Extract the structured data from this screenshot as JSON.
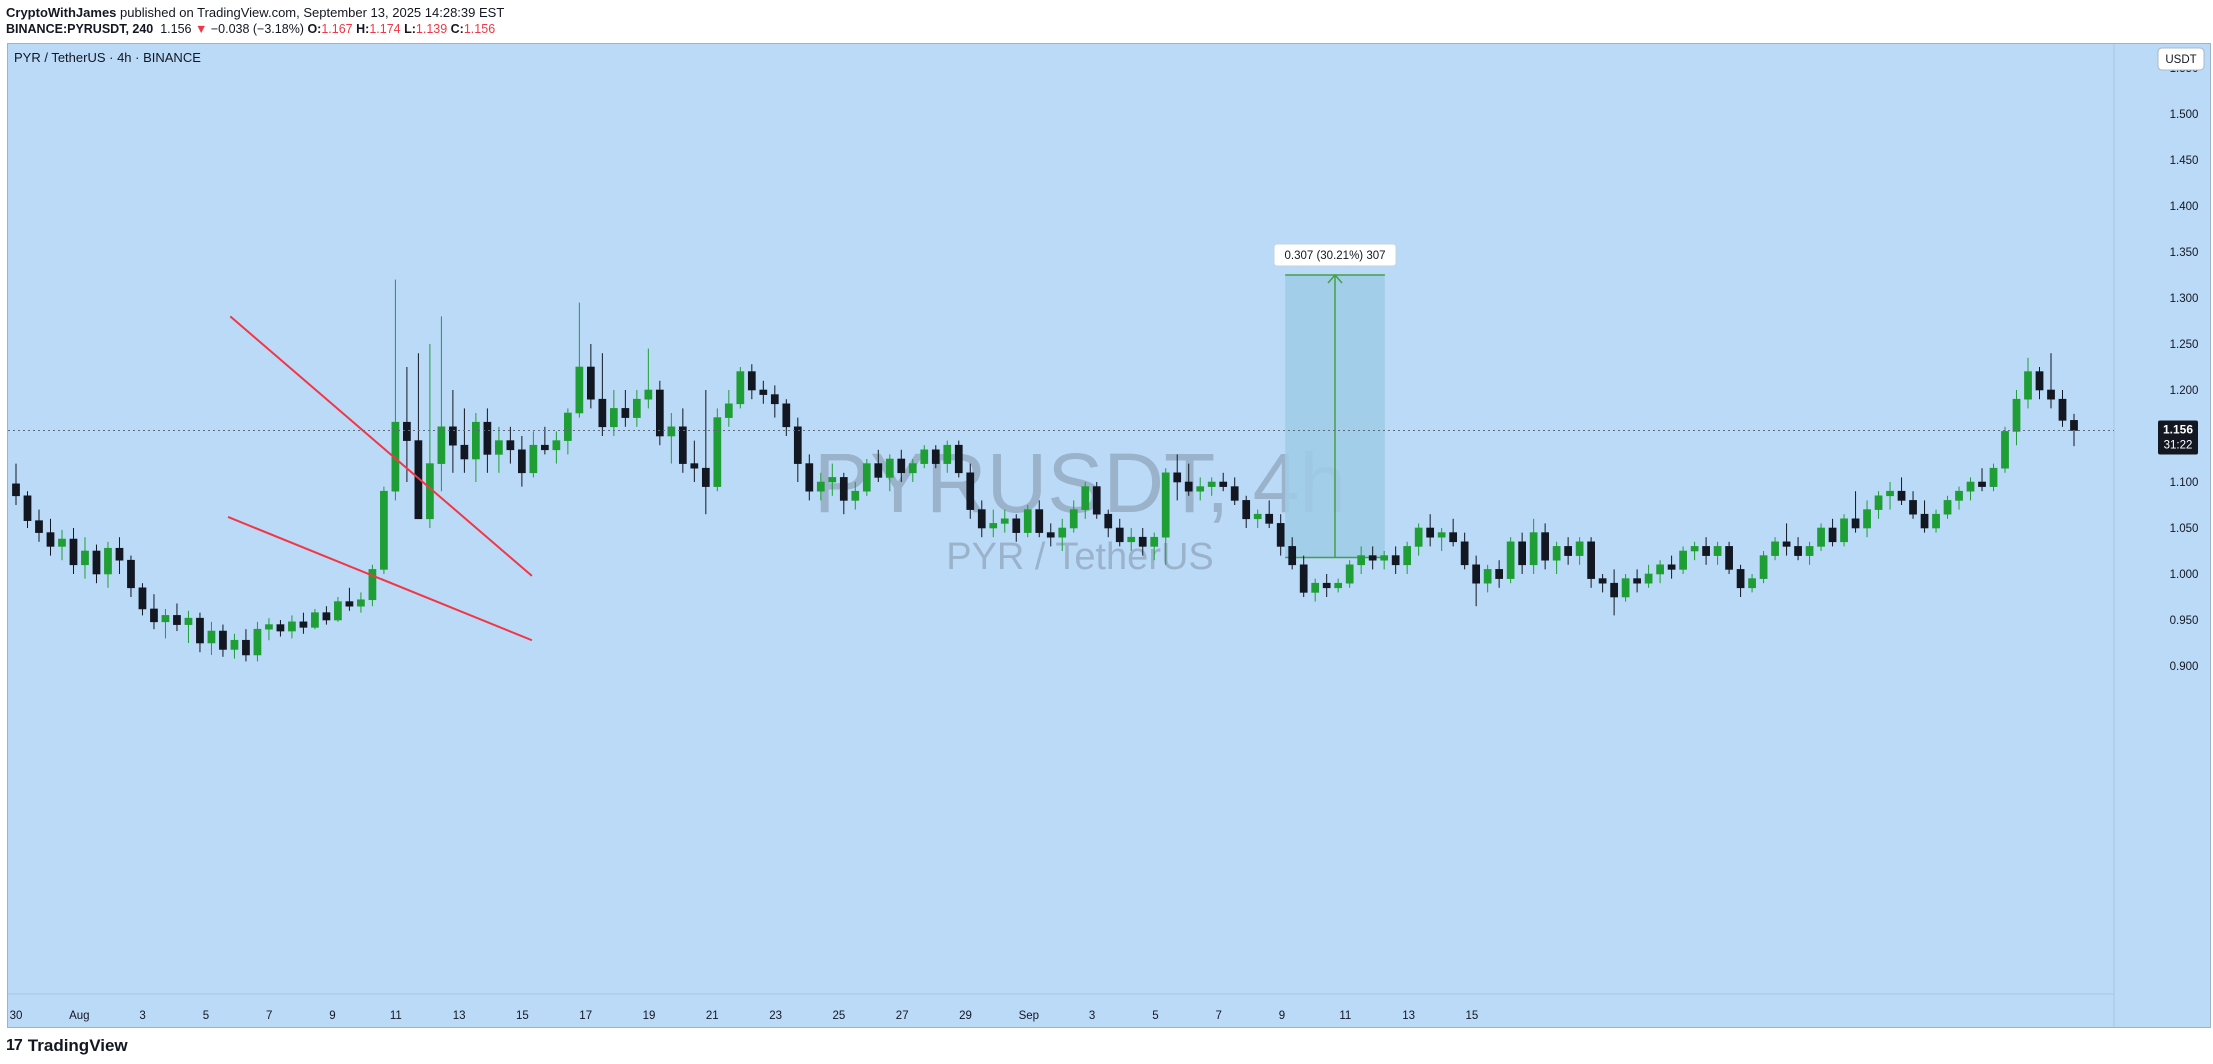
{
  "header": {
    "author": "CryptoWithJames",
    "published_text": "published on TradingView.com, September 13, 2025 14:28:39 EST",
    "symbol_line": "BINANCE:PYRUSDT, 240",
    "last": "1.156",
    "change": "−0.038 (−3.18%)",
    "o_label": "O:",
    "o_value": "1.167",
    "h_label": "H:",
    "h_value": "1.174",
    "l_label": "L:",
    "l_value": "1.139",
    "c_label": "C:",
    "c_value": "1.156"
  },
  "chart_title": "PYR / TetherUS · 4h · BINANCE",
  "watermark": {
    "line1": "PYRUSDT, 4h",
    "line2": "PYR / TetherUS"
  },
  "currency_badge": "USDT",
  "price_tag": {
    "price": "1.156",
    "countdown": "31:22"
  },
  "measure_label": "0.307 (30.21%) 307",
  "footer_brand": "TradingView",
  "colors": {
    "background": "#bbdaf8",
    "up": "#1e9e34",
    "down": "#131722",
    "trendline": "#f23645",
    "measure_fill": "#9fcbe8",
    "measure_line": "#43a047"
  },
  "chart_data": {
    "type": "candlestick",
    "timeframe": "4h",
    "ylim": [
      0.88,
      1.57
    ],
    "y_ticks": [
      "1.550",
      "1.500",
      "1.450",
      "1.400",
      "1.350",
      "1.300",
      "1.250",
      "1.200",
      "1.150",
      "1.100",
      "1.050",
      "1.000",
      "0.950",
      "0.900"
    ],
    "x_tick_labels": [
      "30",
      "Aug",
      "3",
      "5",
      "7",
      "9",
      "11",
      "13",
      "15",
      "17",
      "19",
      "21",
      "23",
      "25",
      "27",
      "29",
      "Sep",
      "3",
      "5",
      "7",
      "9",
      "11",
      "13",
      "15"
    ],
    "x_start_day": -2,
    "last_close": 1.156,
    "trendlines": [
      {
        "name": "upper",
        "from": [
          4.77,
          1.28
        ],
        "to": [
          14.3,
          0.998
        ]
      },
      {
        "name": "lower",
        "from": [
          4.7,
          1.062
        ],
        "to": [
          14.3,
          0.928
        ]
      }
    ],
    "measure": {
      "x_from": 38.1,
      "x_to": 41.25,
      "y_from": 1.018,
      "y_to": 1.325,
      "change": 0.307,
      "percent": 30.21,
      "bars": 307
    },
    "candles": [
      [
        1.098,
        1.12,
        1.075,
        1.085
      ],
      [
        1.085,
        1.09,
        1.05,
        1.058
      ],
      [
        1.058,
        1.07,
        1.035,
        1.045
      ],
      [
        1.045,
        1.06,
        1.02,
        1.03
      ],
      [
        1.03,
        1.048,
        1.015,
        1.038
      ],
      [
        1.038,
        1.05,
        1.0,
        1.01
      ],
      [
        1.01,
        1.04,
        0.995,
        1.025
      ],
      [
        1.025,
        1.032,
        0.99,
        1.0
      ],
      [
        1.0,
        1.035,
        0.985,
        1.028
      ],
      [
        1.028,
        1.04,
        1.0,
        1.015
      ],
      [
        1.015,
        1.02,
        0.975,
        0.985
      ],
      [
        0.985,
        0.99,
        0.955,
        0.962
      ],
      [
        0.962,
        0.978,
        0.94,
        0.948
      ],
      [
        0.948,
        0.962,
        0.93,
        0.955
      ],
      [
        0.955,
        0.968,
        0.938,
        0.945
      ],
      [
        0.945,
        0.96,
        0.925,
        0.952
      ],
      [
        0.952,
        0.958,
        0.915,
        0.925
      ],
      [
        0.925,
        0.948,
        0.912,
        0.938
      ],
      [
        0.938,
        0.945,
        0.91,
        0.918
      ],
      [
        0.918,
        0.935,
        0.908,
        0.928
      ],
      [
        0.928,
        0.94,
        0.905,
        0.912
      ],
      [
        0.912,
        0.948,
        0.905,
        0.94
      ],
      [
        0.94,
        0.952,
        0.928,
        0.945
      ],
      [
        0.945,
        0.95,
        0.932,
        0.938
      ],
      [
        0.938,
        0.955,
        0.93,
        0.948
      ],
      [
        0.948,
        0.958,
        0.935,
        0.942
      ],
      [
        0.942,
        0.962,
        0.94,
        0.958
      ],
      [
        0.958,
        0.965,
        0.945,
        0.95
      ],
      [
        0.95,
        0.975,
        0.948,
        0.97
      ],
      [
        0.97,
        0.985,
        0.96,
        0.965
      ],
      [
        0.965,
        0.98,
        0.958,
        0.972
      ],
      [
        0.972,
        1.01,
        0.965,
        1.005
      ],
      [
        1.005,
        1.095,
        1.0,
        1.09
      ],
      [
        1.09,
        1.32,
        1.08,
        1.165
      ],
      [
        1.165,
        1.225,
        1.1,
        1.145
      ],
      [
        1.145,
        1.24,
        1.06,
        1.06
      ],
      [
        1.06,
        1.25,
        1.05,
        1.12
      ],
      [
        1.12,
        1.28,
        1.09,
        1.16
      ],
      [
        1.16,
        1.2,
        1.11,
        1.14
      ],
      [
        1.14,
        1.18,
        1.11,
        1.125
      ],
      [
        1.125,
        1.175,
        1.1,
        1.165
      ],
      [
        1.165,
        1.18,
        1.11,
        1.13
      ],
      [
        1.13,
        1.16,
        1.11,
        1.145
      ],
      [
        1.145,
        1.16,
        1.12,
        1.135
      ],
      [
        1.135,
        1.15,
        1.095,
        1.11
      ],
      [
        1.11,
        1.155,
        1.105,
        1.14
      ],
      [
        1.14,
        1.16,
        1.13,
        1.135
      ],
      [
        1.135,
        1.155,
        1.12,
        1.145
      ],
      [
        1.145,
        1.18,
        1.13,
        1.175
      ],
      [
        1.175,
        1.295,
        1.17,
        1.225
      ],
      [
        1.225,
        1.25,
        1.18,
        1.19
      ],
      [
        1.19,
        1.24,
        1.15,
        1.16
      ],
      [
        1.16,
        1.2,
        1.15,
        1.18
      ],
      [
        1.18,
        1.2,
        1.16,
        1.17
      ],
      [
        1.17,
        1.2,
        1.16,
        1.19
      ],
      [
        1.19,
        1.245,
        1.18,
        1.2
      ],
      [
        1.2,
        1.21,
        1.14,
        1.15
      ],
      [
        1.15,
        1.175,
        1.12,
        1.16
      ],
      [
        1.16,
        1.18,
        1.11,
        1.12
      ],
      [
        1.12,
        1.145,
        1.1,
        1.115
      ],
      [
        1.115,
        1.2,
        1.065,
        1.095
      ],
      [
        1.095,
        1.18,
        1.09,
        1.17
      ],
      [
        1.17,
        1.2,
        1.16,
        1.185
      ],
      [
        1.185,
        1.225,
        1.18,
        1.22
      ],
      [
        1.22,
        1.228,
        1.19,
        1.2
      ],
      [
        1.2,
        1.21,
        1.185,
        1.195
      ],
      [
        1.195,
        1.205,
        1.17,
        1.185
      ],
      [
        1.185,
        1.19,
        1.15,
        1.16
      ],
      [
        1.16,
        1.17,
        1.1,
        1.12
      ],
      [
        1.12,
        1.13,
        1.08,
        1.09
      ],
      [
        1.09,
        1.11,
        1.08,
        1.1
      ],
      [
        1.1,
        1.12,
        1.085,
        1.105
      ],
      [
        1.105,
        1.11,
        1.065,
        1.08
      ],
      [
        1.08,
        1.1,
        1.07,
        1.09
      ],
      [
        1.09,
        1.125,
        1.085,
        1.12
      ],
      [
        1.12,
        1.135,
        1.1,
        1.105
      ],
      [
        1.105,
        1.13,
        1.09,
        1.125
      ],
      [
        1.125,
        1.135,
        1.1,
        1.11
      ],
      [
        1.11,
        1.125,
        1.1,
        1.12
      ],
      [
        1.12,
        1.14,
        1.115,
        1.135
      ],
      [
        1.135,
        1.14,
        1.115,
        1.12
      ],
      [
        1.12,
        1.145,
        1.11,
        1.14
      ],
      [
        1.14,
        1.145,
        1.105,
        1.11
      ],
      [
        1.11,
        1.12,
        1.06,
        1.07
      ],
      [
        1.07,
        1.08,
        1.04,
        1.05
      ],
      [
        1.05,
        1.07,
        1.04,
        1.055
      ],
      [
        1.055,
        1.07,
        1.045,
        1.06
      ],
      [
        1.06,
        1.065,
        1.035,
        1.045
      ],
      [
        1.045,
        1.075,
        1.04,
        1.07
      ],
      [
        1.07,
        1.08,
        1.04,
        1.045
      ],
      [
        1.045,
        1.055,
        1.03,
        1.04
      ],
      [
        1.04,
        1.06,
        1.025,
        1.05
      ],
      [
        1.05,
        1.08,
        1.045,
        1.07
      ],
      [
        1.07,
        1.1,
        1.06,
        1.095
      ],
      [
        1.095,
        1.1,
        1.06,
        1.065
      ],
      [
        1.065,
        1.07,
        1.04,
        1.05
      ],
      [
        1.05,
        1.06,
        1.03,
        1.035
      ],
      [
        1.035,
        1.05,
        1.025,
        1.04
      ],
      [
        1.04,
        1.05,
        1.02,
        1.03
      ],
      [
        1.03,
        1.045,
        1.015,
        1.04
      ],
      [
        1.04,
        1.115,
        1.01,
        1.11
      ],
      [
        1.11,
        1.13,
        1.08,
        1.1
      ],
      [
        1.1,
        1.12,
        1.085,
        1.09
      ],
      [
        1.09,
        1.105,
        1.08,
        1.095
      ],
      [
        1.095,
        1.105,
        1.085,
        1.1
      ],
      [
        1.1,
        1.11,
        1.09,
        1.095
      ],
      [
        1.095,
        1.105,
        1.075,
        1.08
      ],
      [
        1.08,
        1.085,
        1.05,
        1.06
      ],
      [
        1.06,
        1.07,
        1.05,
        1.065
      ],
      [
        1.065,
        1.08,
        1.05,
        1.055
      ],
      [
        1.055,
        1.065,
        1.02,
        1.03
      ],
      [
        1.03,
        1.04,
        1.005,
        1.01
      ],
      [
        1.01,
        1.02,
        0.975,
        0.98
      ],
      [
        0.98,
        0.995,
        0.97,
        0.99
      ],
      [
        0.99,
        1.0,
        0.975,
        0.985
      ],
      [
        0.985,
        0.995,
        0.98,
        0.99
      ],
      [
        0.99,
        1.015,
        0.985,
        1.01
      ],
      [
        1.01,
        1.03,
        1.0,
        1.02
      ],
      [
        1.02,
        1.03,
        1.005,
        1.015
      ],
      [
        1.015,
        1.025,
        1.005,
        1.02
      ],
      [
        1.02,
        1.03,
        1.0,
        1.01
      ],
      [
        1.01,
        1.035,
        1.0,
        1.03
      ],
      [
        1.03,
        1.055,
        1.02,
        1.05
      ],
      [
        1.05,
        1.065,
        1.03,
        1.04
      ],
      [
        1.04,
        1.05,
        1.025,
        1.045
      ],
      [
        1.045,
        1.06,
        1.03,
        1.035
      ],
      [
        1.035,
        1.045,
        1.005,
        1.01
      ],
      [
        1.01,
        1.02,
        0.965,
        0.99
      ],
      [
        0.99,
        1.01,
        0.98,
        1.005
      ],
      [
        1.005,
        1.015,
        0.985,
        0.995
      ],
      [
        0.995,
        1.04,
        0.99,
        1.035
      ],
      [
        1.035,
        1.045,
        1.0,
        1.01
      ],
      [
        1.01,
        1.06,
        1.0,
        1.045
      ],
      [
        1.045,
        1.055,
        1.005,
        1.015
      ],
      [
        1.015,
        1.035,
        1.0,
        1.03
      ],
      [
        1.03,
        1.04,
        1.01,
        1.02
      ],
      [
        1.02,
        1.04,
        1.01,
        1.035
      ],
      [
        1.035,
        1.04,
        0.985,
        0.995
      ],
      [
        0.995,
        1.0,
        0.98,
        0.99
      ],
      [
        0.99,
        1.005,
        0.955,
        0.975
      ],
      [
        0.975,
        1.0,
        0.97,
        0.995
      ],
      [
        0.995,
        1.005,
        0.98,
        0.99
      ],
      [
        0.99,
        1.01,
        0.985,
        1.0
      ],
      [
        1.0,
        1.015,
        0.99,
        1.01
      ],
      [
        1.01,
        1.02,
        0.995,
        1.005
      ],
      [
        1.005,
        1.03,
        1.0,
        1.025
      ],
      [
        1.025,
        1.035,
        1.015,
        1.03
      ],
      [
        1.03,
        1.04,
        1.01,
        1.02
      ],
      [
        1.02,
        1.035,
        1.01,
        1.03
      ],
      [
        1.03,
        1.035,
        1.0,
        1.005
      ],
      [
        1.005,
        1.01,
        0.975,
        0.985
      ],
      [
        0.985,
        1.0,
        0.98,
        0.995
      ],
      [
        0.995,
        1.025,
        0.99,
        1.02
      ],
      [
        1.02,
        1.04,
        1.015,
        1.035
      ],
      [
        1.035,
        1.055,
        1.02,
        1.03
      ],
      [
        1.03,
        1.04,
        1.015,
        1.02
      ],
      [
        1.02,
        1.035,
        1.01,
        1.03
      ],
      [
        1.03,
        1.055,
        1.025,
        1.05
      ],
      [
        1.05,
        1.06,
        1.03,
        1.035
      ],
      [
        1.035,
        1.065,
        1.03,
        1.06
      ],
      [
        1.06,
        1.09,
        1.045,
        1.05
      ],
      [
        1.05,
        1.08,
        1.04,
        1.07
      ],
      [
        1.07,
        1.09,
        1.06,
        1.085
      ],
      [
        1.085,
        1.1,
        1.07,
        1.09
      ],
      [
        1.09,
        1.105,
        1.075,
        1.08
      ],
      [
        1.08,
        1.09,
        1.06,
        1.065
      ],
      [
        1.065,
        1.08,
        1.045,
        1.05
      ],
      [
        1.05,
        1.07,
        1.045,
        1.065
      ],
      [
        1.065,
        1.085,
        1.06,
        1.08
      ],
      [
        1.08,
        1.095,
        1.07,
        1.09
      ],
      [
        1.09,
        1.105,
        1.08,
        1.1
      ],
      [
        1.1,
        1.115,
        1.09,
        1.095
      ],
      [
        1.095,
        1.12,
        1.09,
        1.115
      ],
      [
        1.115,
        1.16,
        1.11,
        1.155
      ],
      [
        1.155,
        1.2,
        1.14,
        1.19
      ],
      [
        1.19,
        1.235,
        1.18,
        1.22
      ],
      [
        1.22,
        1.225,
        1.19,
        1.2
      ],
      [
        1.2,
        1.24,
        1.18,
        1.19
      ],
      [
        1.19,
        1.2,
        1.16,
        1.167
      ],
      [
        1.167,
        1.174,
        1.139,
        1.156
      ]
    ]
  }
}
